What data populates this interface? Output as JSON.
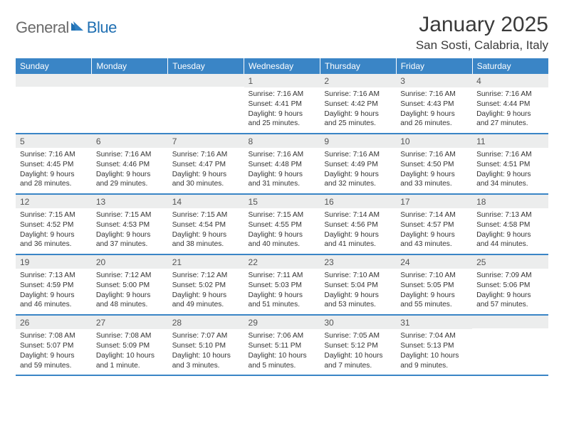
{
  "logo": {
    "text1": "General",
    "text2": "Blue"
  },
  "title": "January 2025",
  "location": "San Sosti, Calabria, Italy",
  "colors": {
    "header_bg": "#3a85c6",
    "header_text": "#ffffff",
    "daynum_bg": "#eceded",
    "text": "#333333",
    "logo_gray": "#6a6a6a",
    "logo_blue": "#1f6fb2"
  },
  "day_headers": [
    "Sunday",
    "Monday",
    "Tuesday",
    "Wednesday",
    "Thursday",
    "Friday",
    "Saturday"
  ],
  "weeks": [
    [
      null,
      null,
      null,
      {
        "n": "1",
        "sunrise": "7:16 AM",
        "sunset": "4:41 PM",
        "daylight": "9 hours and 25 minutes."
      },
      {
        "n": "2",
        "sunrise": "7:16 AM",
        "sunset": "4:42 PM",
        "daylight": "9 hours and 25 minutes."
      },
      {
        "n": "3",
        "sunrise": "7:16 AM",
        "sunset": "4:43 PM",
        "daylight": "9 hours and 26 minutes."
      },
      {
        "n": "4",
        "sunrise": "7:16 AM",
        "sunset": "4:44 PM",
        "daylight": "9 hours and 27 minutes."
      }
    ],
    [
      {
        "n": "5",
        "sunrise": "7:16 AM",
        "sunset": "4:45 PM",
        "daylight": "9 hours and 28 minutes."
      },
      {
        "n": "6",
        "sunrise": "7:16 AM",
        "sunset": "4:46 PM",
        "daylight": "9 hours and 29 minutes."
      },
      {
        "n": "7",
        "sunrise": "7:16 AM",
        "sunset": "4:47 PM",
        "daylight": "9 hours and 30 minutes."
      },
      {
        "n": "8",
        "sunrise": "7:16 AM",
        "sunset": "4:48 PM",
        "daylight": "9 hours and 31 minutes."
      },
      {
        "n": "9",
        "sunrise": "7:16 AM",
        "sunset": "4:49 PM",
        "daylight": "9 hours and 32 minutes."
      },
      {
        "n": "10",
        "sunrise": "7:16 AM",
        "sunset": "4:50 PM",
        "daylight": "9 hours and 33 minutes."
      },
      {
        "n": "11",
        "sunrise": "7:16 AM",
        "sunset": "4:51 PM",
        "daylight": "9 hours and 34 minutes."
      }
    ],
    [
      {
        "n": "12",
        "sunrise": "7:15 AM",
        "sunset": "4:52 PM",
        "daylight": "9 hours and 36 minutes."
      },
      {
        "n": "13",
        "sunrise": "7:15 AM",
        "sunset": "4:53 PM",
        "daylight": "9 hours and 37 minutes."
      },
      {
        "n": "14",
        "sunrise": "7:15 AM",
        "sunset": "4:54 PM",
        "daylight": "9 hours and 38 minutes."
      },
      {
        "n": "15",
        "sunrise": "7:15 AM",
        "sunset": "4:55 PM",
        "daylight": "9 hours and 40 minutes."
      },
      {
        "n": "16",
        "sunrise": "7:14 AM",
        "sunset": "4:56 PM",
        "daylight": "9 hours and 41 minutes."
      },
      {
        "n": "17",
        "sunrise": "7:14 AM",
        "sunset": "4:57 PM",
        "daylight": "9 hours and 43 minutes."
      },
      {
        "n": "18",
        "sunrise": "7:13 AM",
        "sunset": "4:58 PM",
        "daylight": "9 hours and 44 minutes."
      }
    ],
    [
      {
        "n": "19",
        "sunrise": "7:13 AM",
        "sunset": "4:59 PM",
        "daylight": "9 hours and 46 minutes."
      },
      {
        "n": "20",
        "sunrise": "7:12 AM",
        "sunset": "5:00 PM",
        "daylight": "9 hours and 48 minutes."
      },
      {
        "n": "21",
        "sunrise": "7:12 AM",
        "sunset": "5:02 PM",
        "daylight": "9 hours and 49 minutes."
      },
      {
        "n": "22",
        "sunrise": "7:11 AM",
        "sunset": "5:03 PM",
        "daylight": "9 hours and 51 minutes."
      },
      {
        "n": "23",
        "sunrise": "7:10 AM",
        "sunset": "5:04 PM",
        "daylight": "9 hours and 53 minutes."
      },
      {
        "n": "24",
        "sunrise": "7:10 AM",
        "sunset": "5:05 PM",
        "daylight": "9 hours and 55 minutes."
      },
      {
        "n": "25",
        "sunrise": "7:09 AM",
        "sunset": "5:06 PM",
        "daylight": "9 hours and 57 minutes."
      }
    ],
    [
      {
        "n": "26",
        "sunrise": "7:08 AM",
        "sunset": "5:07 PM",
        "daylight": "9 hours and 59 minutes."
      },
      {
        "n": "27",
        "sunrise": "7:08 AM",
        "sunset": "5:09 PM",
        "daylight": "10 hours and 1 minute."
      },
      {
        "n": "28",
        "sunrise": "7:07 AM",
        "sunset": "5:10 PM",
        "daylight": "10 hours and 3 minutes."
      },
      {
        "n": "29",
        "sunrise": "7:06 AM",
        "sunset": "5:11 PM",
        "daylight": "10 hours and 5 minutes."
      },
      {
        "n": "30",
        "sunrise": "7:05 AM",
        "sunset": "5:12 PM",
        "daylight": "10 hours and 7 minutes."
      },
      {
        "n": "31",
        "sunrise": "7:04 AM",
        "sunset": "5:13 PM",
        "daylight": "10 hours and 9 minutes."
      },
      null
    ]
  ],
  "labels": {
    "sunrise": "Sunrise:",
    "sunset": "Sunset:",
    "daylight": "Daylight:"
  }
}
